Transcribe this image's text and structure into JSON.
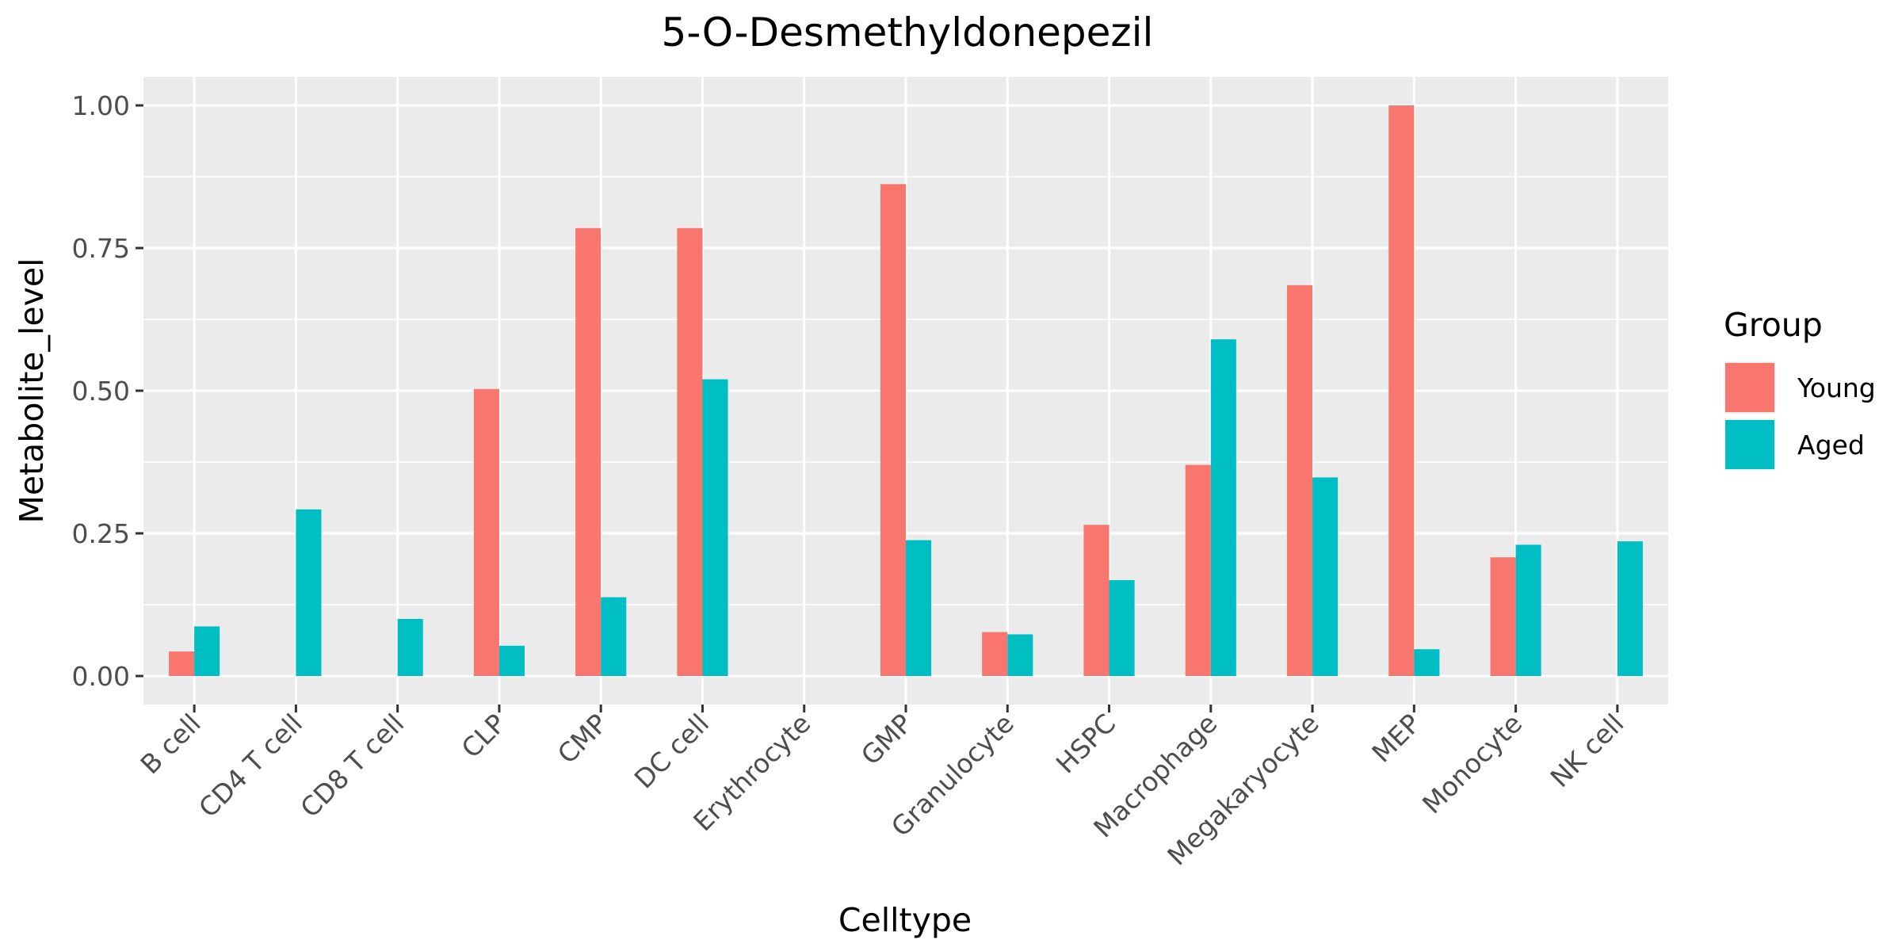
{
  "chart_data": {
    "type": "bar",
    "title": "5-O-Desmethyldonepezil",
    "xlabel": "Celltype",
    "ylabel": "Metabolite_level",
    "categories": [
      "B cell",
      "CD4 T cell",
      "CD8 T cell",
      "CLP",
      "CMP",
      "DC cell",
      "Erythrocyte",
      "GMP",
      "Granulocyte",
      "HSPC",
      "Macrophage",
      "Megakaryocyte",
      "MEP",
      "Monocyte",
      "NK cell"
    ],
    "series": [
      {
        "name": "Young",
        "color": "#F8766D",
        "values": [
          0.043,
          null,
          null,
          0.503,
          0.785,
          0.785,
          null,
          0.862,
          0.077,
          0.265,
          0.37,
          0.685,
          1.0,
          0.208,
          null
        ]
      },
      {
        "name": "Aged",
        "color": "#00BFC4",
        "values": [
          0.087,
          0.292,
          0.1,
          0.053,
          0.138,
          0.52,
          null,
          0.238,
          0.073,
          0.168,
          0.59,
          0.348,
          0.047,
          0.23,
          0.236
        ]
      }
    ],
    "ylim": [
      -0.05,
      1.05
    ],
    "yticks": [
      0,
      0.25,
      0.5,
      0.75,
      1.0
    ],
    "ytick_labels": [
      "0.00",
      "0.25",
      "0.50",
      "0.75",
      "1.00"
    ],
    "legend": {
      "title": "Group",
      "position": "right"
    },
    "grid": true,
    "panel_color": "#EBEBEB"
  }
}
